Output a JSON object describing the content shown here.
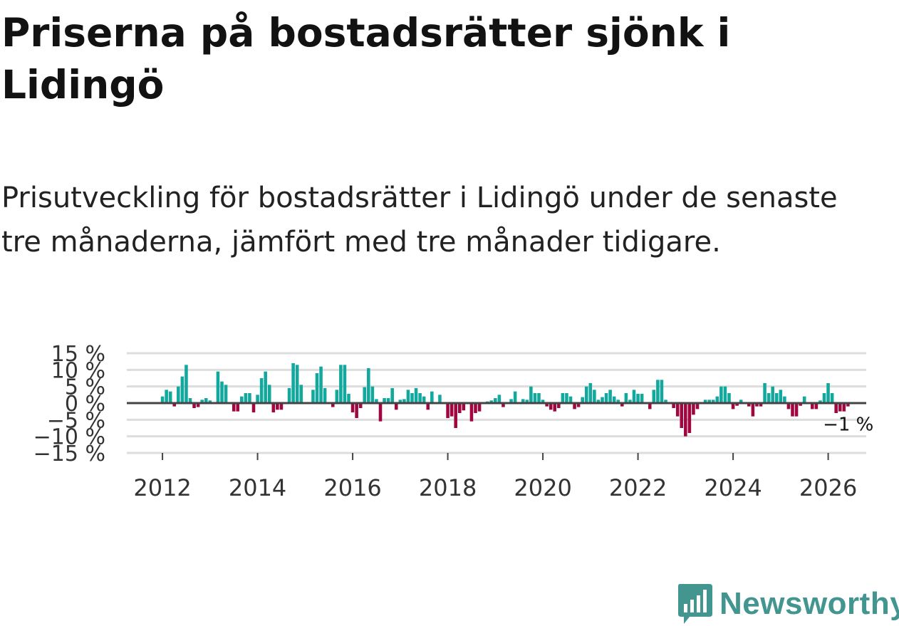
{
  "title": "Priserna på bostadsrätter sjönk i Lidingö",
  "subtitle": "Prisutveckling för bostadsrätter i Lidingö under de senaste tre månaderna, jämfört med tre månader tidigare.",
  "brand": {
    "name": "Newsworthy",
    "color": "#43958f",
    "icon": "bar-chart-speech-bubble-icon"
  },
  "colors": {
    "positive": "#13a89e",
    "negative": "#a0063f",
    "grid": "#dddddd",
    "zero": "#444444"
  },
  "chart_data": {
    "type": "bar",
    "title": "Priserna på bostadsrätter sjönk i Lidingö",
    "xlabel": "",
    "ylabel": "",
    "x_start": 2012.0,
    "step": 0.08333,
    "xlim": [
      2011.25,
      2026.8
    ],
    "ylim": [
      -15,
      15
    ],
    "yticks": [
      -15,
      -10,
      -5,
      0,
      5,
      10,
      15
    ],
    "ytick_labels": [
      "−15 %",
      "−10 %",
      "−5 %",
      "0 %",
      "5 %",
      "10 %",
      "15 %"
    ],
    "xticks": [
      2012,
      2014,
      2016,
      2018,
      2020,
      2022,
      2024,
      2026
    ],
    "xtick_labels": [
      "2012",
      "2014",
      "2016",
      "2018",
      "2020",
      "2022",
      "2024",
      "2026"
    ],
    "grid": true,
    "values": [
      2,
      4,
      3.5,
      -1,
      5,
      8,
      11.5,
      1.5,
      -1.5,
      -1.2,
      1,
      1.5,
      0.8,
      0,
      9.5,
      6.5,
      5.5,
      0,
      -2.5,
      -2.5,
      2,
      3,
      3,
      -2.8,
      2.5,
      7.5,
      9.5,
      5.5,
      -2.8,
      -2,
      -2,
      0,
      4.5,
      12,
      11.5,
      5.5,
      0,
      0,
      4,
      9,
      11,
      4.5,
      0,
      -1.2,
      4,
      11.5,
      11.5,
      2.8,
      -2.8,
      -4.5,
      -1.5,
      4.8,
      10.5,
      5,
      1.2,
      -5.5,
      1.5,
      1.5,
      4.5,
      -2,
      1,
      1.2,
      4,
      3,
      4.5,
      3,
      2,
      -2,
      3.5,
      0,
      2.5,
      0,
      -4.5,
      -4,
      -7.5,
      -3,
      -2.2,
      0,
      -5.5,
      -3,
      -2.5,
      0,
      0.5,
      0.8,
      1.5,
      2.5,
      -1.2,
      0,
      1.2,
      3.5,
      0,
      1.2,
      1,
      5,
      3,
      3,
      1,
      -1,
      -2,
      -2.5,
      -1.5,
      3,
      3,
      2,
      -1.8,
      -1.2,
      1.8,
      5,
      6,
      4,
      1,
      1.8,
      3,
      4,
      2,
      1,
      -1,
      3,
      1,
      4,
      2.8,
      2.8,
      0,
      -1.8,
      4,
      7,
      7,
      1,
      0,
      -1.5,
      -4,
      -7.5,
      -10,
      -9,
      -3.5,
      -1.8,
      0,
      1,
      1,
      1,
      2,
      5,
      5,
      3,
      -1.8,
      -0.8,
      1,
      0,
      -1,
      -4,
      -1,
      -1,
      6,
      3,
      5,
      3,
      4,
      2,
      -1.8,
      -4,
      -4,
      -0.8,
      2,
      0,
      -1.8,
      -1.8,
      0.8,
      3,
      6,
      3,
      -3,
      -2.5,
      -2.5,
      -1
    ],
    "annotation": {
      "label": "−1 %",
      "value": -1
    }
  }
}
